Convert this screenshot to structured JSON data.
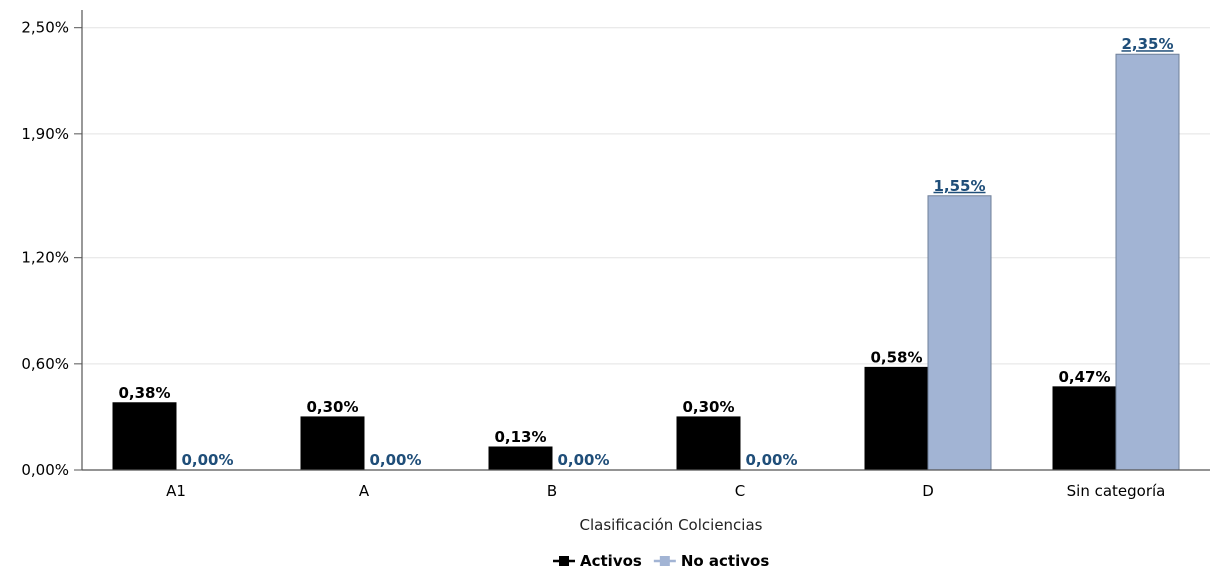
{
  "chart_data": {
    "type": "bar",
    "xlabel": "Clasificación Colciencias",
    "ylabel": "",
    "title": "",
    "categories": [
      "A1",
      "A",
      "B",
      "C",
      "D",
      "Sin categoría"
    ],
    "ylim": [
      0,
      2.5
    ],
    "yticks": [
      0,
      0.6,
      1.2,
      1.9,
      2.5
    ],
    "ytick_labels": [
      "0,00%",
      "0,60%",
      "1,20%",
      "1,90%",
      "2,50%"
    ],
    "grid": true,
    "legend_position": "bottom",
    "series": [
      {
        "name": "Activos",
        "color": "#000000",
        "label_color": "#000000",
        "values": [
          0.38,
          0.3,
          0.13,
          0.3,
          0.58,
          0.47
        ],
        "value_labels": [
          "0,38%",
          "0,30%",
          "0,13%",
          "0,30%",
          "0,58%",
          "0,47%"
        ]
      },
      {
        "name": "No activos",
        "color": "#a2b4d4",
        "label_color": "#1f4e79",
        "values": [
          0.0,
          0.0,
          0.0,
          0.0,
          1.55,
          2.35
        ],
        "value_labels": [
          "0,00%",
          "0,00%",
          "0,00%",
          "0,00%",
          "1,55%",
          "2,35%"
        ]
      }
    ]
  }
}
